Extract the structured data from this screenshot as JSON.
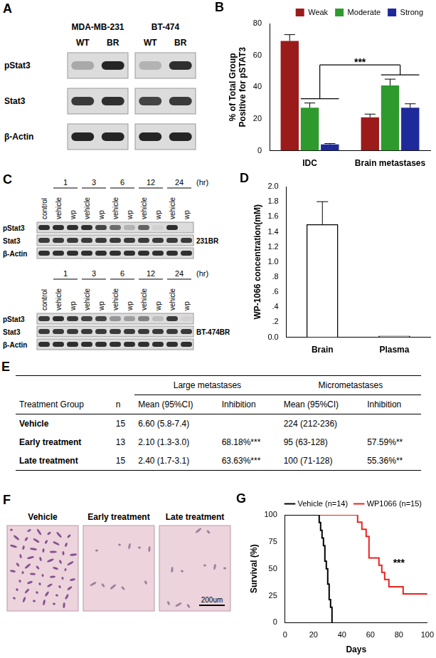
{
  "blot_A": {
    "label": "A",
    "groups": [
      {
        "name": "MDA-MB-231",
        "lanes": [
          "WT",
          "BR"
        ]
      },
      {
        "name": "BT-474",
        "lanes": [
          "WT",
          "BR"
        ]
      }
    ],
    "rows": [
      {
        "name": "pStat3",
        "bands": [
          0.25,
          0.9,
          0.2,
          0.85
        ]
      },
      {
        "name": "Stat3",
        "bands": [
          0.8,
          0.85,
          0.75,
          0.8
        ]
      },
      {
        "name": "β-Actin",
        "bands": [
          0.9,
          0.9,
          0.9,
          0.9
        ]
      }
    ]
  },
  "chart_data": [
    {
      "label": "B",
      "type": "bar",
      "categories": [
        "IDC",
        "Brain metastases"
      ],
      "y_label": [
        "% of Total Group",
        "Positive for pSTAT3"
      ],
      "series": [
        {
          "name": "Weak",
          "color": "#9b1b1b",
          "values": [
            69,
            21
          ],
          "errors": [
            4,
            2
          ]
        },
        {
          "name": "Moderate",
          "color": "#2e9a2e",
          "values": [
            27,
            41
          ],
          "errors": [
            3,
            4
          ]
        },
        {
          "name": "Strong",
          "color": "#1f2a9a",
          "values": [
            4,
            27
          ],
          "errors": [
            0.5,
            2.5
          ]
        }
      ],
      "ylim": [
        0,
        80
      ],
      "yticks": [
        0,
        20,
        40,
        60,
        80
      ],
      "grid": false,
      "legend": "top-right",
      "annotations": [
        "***"
      ]
    },
    {
      "label": "D",
      "type": "bar",
      "categories": [
        "Brain",
        "Plasma"
      ],
      "values": [
        1.5,
        0.02
      ],
      "errors": [
        0.3,
        null
      ],
      "color": "#ffffff",
      "y_label": "WP-1066 concentration(mM)",
      "ylim": [
        0,
        2.0
      ],
      "yticks": [
        {
          "value": 0,
          "label": "0.0"
        },
        {
          "value": 0.2,
          "label": ".2"
        },
        {
          "value": 0.4,
          "label": ".4"
        },
        {
          "value": 0.6,
          "label": ".6"
        },
        {
          "value": 0.8,
          "label": ".8"
        },
        {
          "value": 1.0,
          "label": "1.0"
        },
        {
          "value": 1.2,
          "label": "1.2"
        },
        {
          "value": 1.4,
          "label": "1.4"
        },
        {
          "value": 1.6,
          "label": "1.6"
        },
        {
          "value": 1.8,
          "label": "1.8"
        },
        {
          "value": 2.0,
          "label": "2.0"
        }
      ],
      "grid": false
    },
    {
      "label": "G",
      "type": "line",
      "x_label": "Days",
      "y_label": "Survival (%)",
      "line_style": "step",
      "series": [
        {
          "name": "Vehicle (n=14)",
          "color": "#000000",
          "x": [
            0,
            24,
            25,
            26,
            27,
            28,
            29,
            30,
            31,
            32,
            33
          ],
          "values": [
            100,
            92.9,
            85.7,
            78.6,
            71.4,
            57.1,
            50,
            35.7,
            21.4,
            14.3,
            0
          ]
        },
        {
          "name": "WP1066 (n=15)",
          "color": "#e8231f",
          "x": [
            0,
            51,
            54,
            57,
            59,
            66,
            68,
            70,
            73,
            83,
            100
          ],
          "values": [
            100,
            93.3,
            86.7,
            80,
            60,
            53.3,
            46.7,
            40,
            33.3,
            26.7,
            26.7
          ]
        }
      ],
      "xlim": [
        0,
        100
      ],
      "xticks": [
        0,
        20,
        40,
        60,
        80,
        100
      ],
      "ylim": [
        0,
        100
      ],
      "yticks": [
        0,
        25,
        50,
        75,
        100
      ],
      "grid": false,
      "legend": "top-right",
      "annotations": [
        "***"
      ]
    }
  ],
  "blot_C": {
    "label": "C",
    "times": [
      "1",
      "3",
      "6",
      "12",
      "24"
    ],
    "time_unit": "(hr)",
    "lanes": [
      "control",
      "vehicle",
      "wp",
      "vehicle",
      "wp",
      "vehicle",
      "wp",
      "vehicle",
      "wp",
      "vehicle",
      "wp"
    ],
    "blots": [
      {
        "name": "231BR",
        "rows": [
          {
            "name": "pStat3",
            "bands": [
              0.85,
              0.85,
              0.85,
              0.85,
              0.75,
              0.55,
              0.2,
              0.6,
              0.05,
              0.85,
              0
            ]
          },
          {
            "name": "Stat3",
            "bands": [
              0.8,
              0.8,
              0.8,
              0.8,
              0.8,
              0.8,
              0.8,
              0.8,
              0.8,
              0.8,
              0.8
            ]
          },
          {
            "name": "β-Actin",
            "bands": [
              0.85,
              0.85,
              0.85,
              0.85,
              0.85,
              0.85,
              0.85,
              0.85,
              0.85,
              0.85,
              0.85
            ]
          }
        ]
      },
      {
        "name": "BT-474BR",
        "rows": [
          {
            "name": "pStat3",
            "bands": [
              0.8,
              0.85,
              0.8,
              0.75,
              0.75,
              0.35,
              0.3,
              0.45,
              0.15,
              0.8,
              0.05
            ]
          },
          {
            "name": "Stat3",
            "bands": [
              0.8,
              0.8,
              0.8,
              0.8,
              0.8,
              0.8,
              0.8,
              0.8,
              0.8,
              0.8,
              0.8
            ]
          },
          {
            "name": "β-Actin",
            "bands": [
              0.85,
              0.85,
              0.85,
              0.85,
              0.85,
              0.85,
              0.85,
              0.85,
              0.85,
              0.85,
              0.85
            ]
          }
        ]
      }
    ]
  },
  "table_E": {
    "label": "E",
    "header": [
      "Treatment Group",
      "n",
      "Large metastases",
      "Micrometastases"
    ],
    "subheader": [
      "Mean (95%CI)",
      "Inhibition",
      "Mean (95%CI)",
      "Inhibition"
    ],
    "rows": [
      [
        "Vehicle",
        "15",
        "6.60 (5.8-7.4)",
        null,
        "224 (212-236)",
        null
      ],
      [
        "Early treatment",
        "13",
        "2.10 (1.3-3.0)",
        "68.18%***",
        "95 (63-128)",
        "57.59%**"
      ],
      [
        "Late treatment",
        "15",
        "2.40 (1.7-3.1)",
        "63.63%***",
        "100 (71-128)",
        "55.36%**"
      ]
    ]
  },
  "images_F": {
    "label": "F",
    "panels": [
      "Vehicle",
      "Early treatment",
      "Late treatment"
    ],
    "scale_bar": "200um"
  }
}
